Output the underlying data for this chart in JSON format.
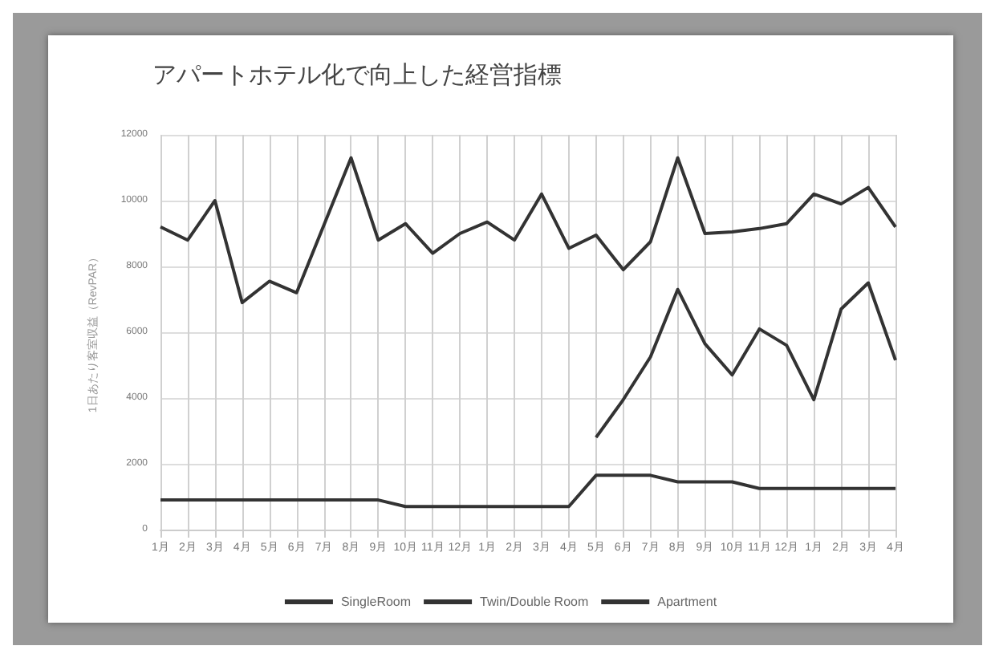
{
  "chart_data": {
    "type": "line",
    "title": "アパートホテル化で向上した経営指標",
    "ylabel": "1日あたり客室収益（RevPAR）",
    "categories": [
      "1月",
      "2月",
      "3月",
      "4月",
      "5月",
      "6月",
      "7月",
      "8月",
      "9月",
      "10月",
      "11月",
      "12月",
      "1月",
      "2月",
      "3月",
      "4月",
      "5月",
      "6月",
      "7月",
      "8月",
      "9月",
      "10月",
      "11月",
      "12月",
      "1月",
      "2月",
      "3月",
      "4月"
    ],
    "series": [
      {
        "name": "SingleRoom",
        "color": "#333333",
        "values": [
          9200,
          8800,
          10000,
          6900,
          7550,
          7200,
          9250,
          11300,
          8800,
          9300,
          8400,
          9000,
          9350,
          8800,
          10200,
          8550,
          8950,
          7900,
          8750,
          11300,
          9000,
          9050,
          9150,
          9300,
          10200,
          9900,
          10400,
          9200
        ]
      },
      {
        "name": "Twin/Double Room",
        "color": "#333333",
        "values": [
          900,
          900,
          900,
          900,
          900,
          900,
          900,
          900,
          900,
          700,
          700,
          700,
          700,
          700,
          700,
          700,
          1650,
          1650,
          1650,
          1450,
          1450,
          1450,
          1250,
          1250,
          1250,
          1250,
          1250,
          1250
        ]
      },
      {
        "name": "Apartment",
        "color": "#333333",
        "values": [
          null,
          null,
          null,
          null,
          null,
          null,
          null,
          null,
          null,
          null,
          null,
          null,
          null,
          null,
          null,
          null,
          2800,
          3950,
          5250,
          7300,
          5650,
          4700,
          6100,
          5600,
          3950,
          6700,
          7500,
          5150
        ]
      }
    ],
    "ylim": [
      0,
      12000
    ],
    "yticks": [
      0,
      2000,
      4000,
      6000,
      8000,
      10000,
      12000
    ],
    "grid": true,
    "legend": "bottom",
    "marker": "none",
    "line_style": "solid"
  }
}
